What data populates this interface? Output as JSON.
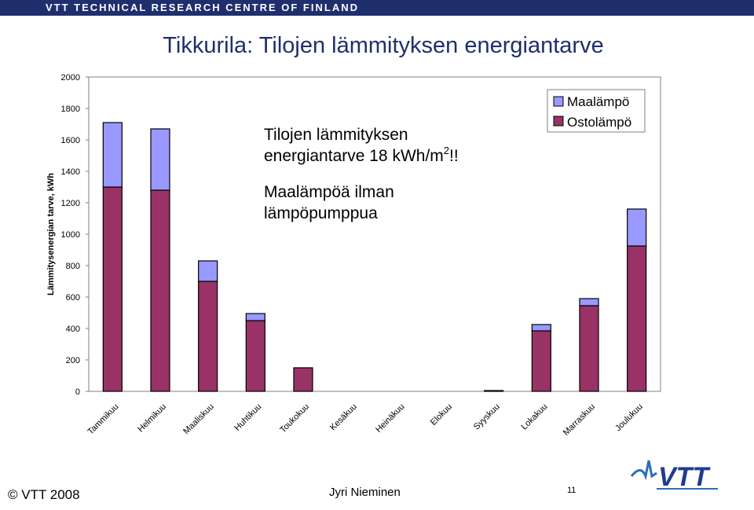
{
  "header": {
    "banner": "VTT TECHNICAL RESEARCH CENTRE OF FINLAND",
    "title": "Tikkurila: Tilojen lämmityksen energiantarve"
  },
  "chart_data": {
    "type": "bar",
    "stacked": true,
    "categories": [
      "Tammikuu",
      "Helmikuu",
      "Maaliskuu",
      "Huhtikuu",
      "Toukokuu",
      "Kesäkuu",
      "Heinäkuu",
      "Elokuu",
      "Syyskuu",
      "Lokakuu",
      "Marraskuu",
      "Joulukuu"
    ],
    "series": [
      {
        "name": "Ostolämpö",
        "color": "#993366",
        "values": [
          1300,
          1280,
          700,
          450,
          150,
          0,
          0,
          0,
          5,
          385,
          545,
          925
        ]
      },
      {
        "name": "Maalämpö",
        "color": "#9999ff",
        "values": [
          410,
          390,
          130,
          45,
          0,
          0,
          0,
          0,
          0,
          40,
          45,
          235
        ]
      }
    ],
    "ylabel": "Lämmitysenergian tarve, kWh",
    "xlabel": "",
    "ylim": [
      0,
      2000
    ],
    "yticks": [
      0,
      200,
      400,
      600,
      800,
      1000,
      1200,
      1400,
      1600,
      1800,
      2000
    ],
    "legend": "top-right",
    "grid": false,
    "annotations": {
      "line1": "Tilojen lämmityksen",
      "line2_prefix": "energiantarve 18 kWh/m",
      "line2_sup": "2",
      "line2_suffix": "!!",
      "line3": "Maalämpöä ilman",
      "line4": "lämpöpumppua"
    }
  },
  "footer": {
    "copyright": "© VTT 2008",
    "author": "Jyri Nieminen",
    "page": "11"
  },
  "logo": {
    "text": "VTT",
    "color": "#1f3c8f",
    "accent": "#2a6ebb"
  }
}
